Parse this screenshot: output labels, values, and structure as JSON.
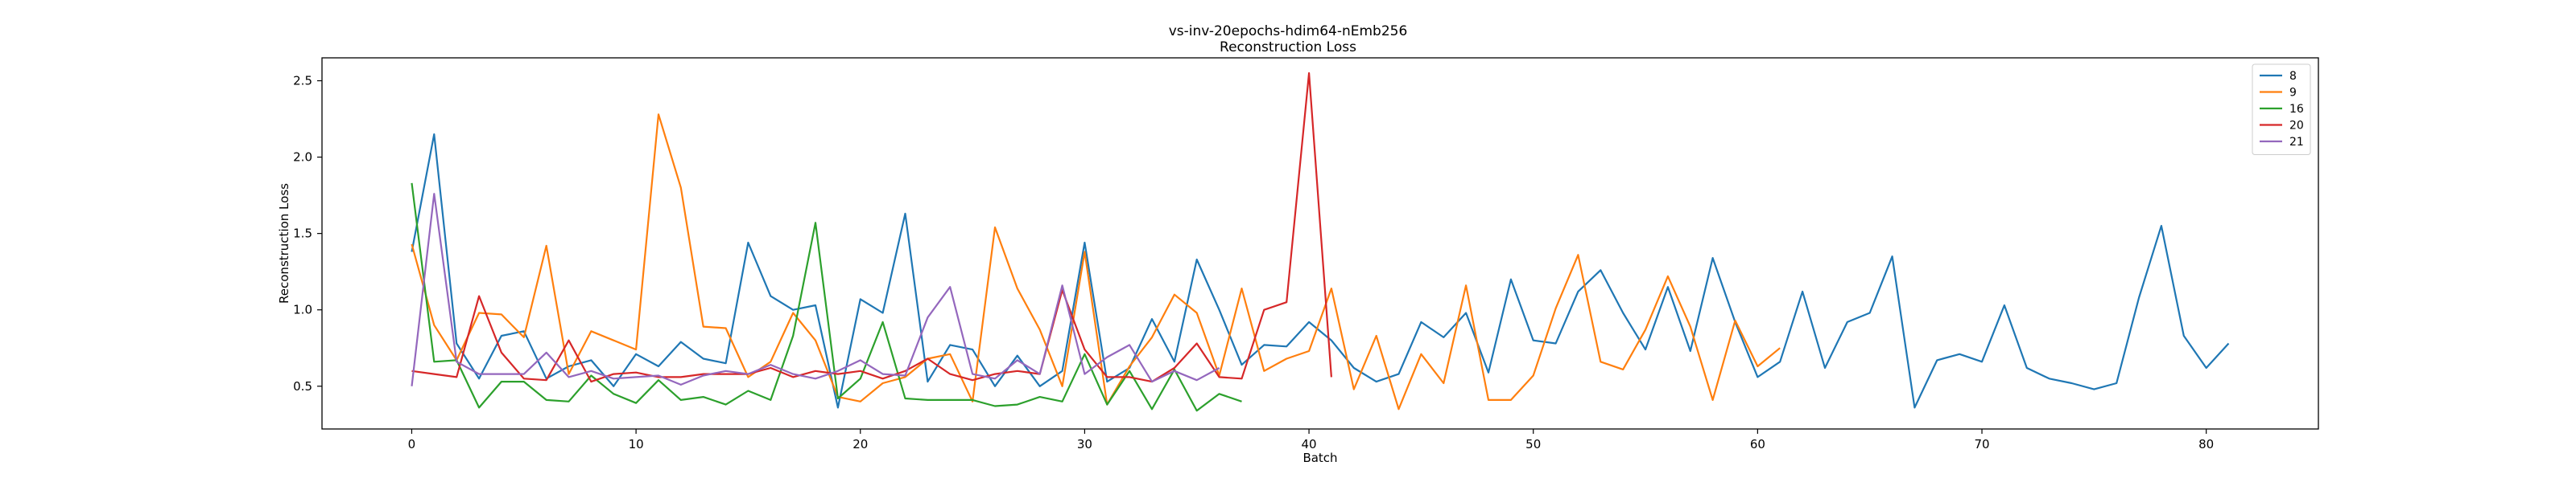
{
  "chart_data": {
    "type": "line",
    "title": "vs-inv-20epochs-hdim64-nEmb256",
    "subtitle": "Reconstruction Loss",
    "xlabel": "Batch",
    "ylabel": "Reconstruction Loss",
    "xlim": [
      -4,
      85
    ],
    "ylim": [
      0.22,
      2.65
    ],
    "xticks": [
      0,
      10,
      20,
      30,
      40,
      50,
      60,
      70,
      80
    ],
    "yticks": [
      0.5,
      1.0,
      1.5,
      2.0,
      2.5
    ],
    "ytick_labels": [
      "0.5",
      "1.0",
      "1.5",
      "2.0",
      "2.5"
    ],
    "grid": false,
    "legend_position": "top-right",
    "series": [
      {
        "name": "8",
        "color": "#1f77b4",
        "values": [
          1.38,
          2.15,
          0.78,
          0.55,
          0.83,
          0.86,
          0.55,
          0.63,
          0.67,
          0.5,
          0.71,
          0.63,
          0.79,
          0.68,
          0.65,
          1.44,
          1.09,
          1.0,
          1.03,
          0.36,
          1.07,
          0.98,
          1.63,
          0.53,
          0.77,
          0.74,
          0.5,
          0.7,
          0.5,
          0.6,
          1.44,
          0.53,
          0.62,
          0.94,
          0.66,
          1.33,
          1.0,
          0.64,
          0.77,
          0.76,
          0.92,
          0.8,
          0.62,
          0.53,
          0.58,
          0.92,
          0.82,
          0.98,
          0.59,
          1.2,
          0.8,
          0.78,
          1.12,
          1.26,
          0.98,
          0.74,
          1.15,
          0.73,
          1.34,
          0.92,
          0.56,
          0.66,
          1.12,
          0.62,
          0.92,
          0.98,
          1.35,
          0.36,
          0.67,
          0.71,
          0.66,
          1.03,
          0.62,
          0.55,
          0.52,
          0.48,
          0.52,
          1.08,
          1.55,
          0.83,
          0.62,
          0.78
        ]
      },
      {
        "name": "9",
        "color": "#ff7f0e",
        "values": [
          1.43,
          0.9,
          0.67,
          0.98,
          0.97,
          0.82,
          1.42,
          0.58,
          0.86,
          0.8,
          0.74,
          2.28,
          1.8,
          0.89,
          0.88,
          0.56,
          0.66,
          0.98,
          0.8,
          0.43,
          0.4,
          0.52,
          0.56,
          0.68,
          0.71,
          0.4,
          1.54,
          1.14,
          0.87,
          0.5,
          1.38,
          0.38,
          0.63,
          0.82,
          1.1,
          0.98,
          0.57,
          1.14,
          0.6,
          0.68,
          0.73,
          1.14,
          0.48,
          0.83,
          0.35,
          0.71,
          0.52,
          1.16,
          0.41,
          0.41,
          0.57,
          1.01,
          1.36,
          0.66,
          0.61,
          0.87,
          1.22,
          0.89,
          0.41,
          0.93,
          0.63,
          0.75
        ]
      },
      {
        "name": "16",
        "color": "#2ca02c",
        "values": [
          1.83,
          0.66,
          0.67,
          0.36,
          0.53,
          0.53,
          0.41,
          0.4,
          0.57,
          0.45,
          0.39,
          0.54,
          0.41,
          0.43,
          0.38,
          0.47,
          0.41,
          0.83,
          1.57,
          0.42,
          0.55,
          0.92,
          0.42,
          0.41,
          0.41,
          0.41,
          0.37,
          0.38,
          0.43,
          0.4,
          0.71,
          0.38,
          0.6,
          0.35,
          0.61,
          0.34,
          0.45,
          0.4
        ]
      },
      {
        "name": "20",
        "color": "#d62728",
        "values": [
          0.6,
          0.58,
          0.56,
          1.09,
          0.72,
          0.55,
          0.54,
          0.8,
          0.53,
          0.58,
          0.59,
          0.56,
          0.56,
          0.58,
          0.58,
          0.58,
          0.62,
          0.56,
          0.6,
          0.58,
          0.6,
          0.55,
          0.6,
          0.68,
          0.58,
          0.54,
          0.58,
          0.6,
          0.58,
          1.13,
          0.74,
          0.56,
          0.56,
          0.53,
          0.62,
          0.78,
          0.56,
          0.55,
          1.0,
          1.05,
          2.55,
          0.56
        ]
      },
      {
        "name": "21",
        "color": "#9467bd",
        "values": [
          0.5,
          1.76,
          0.66,
          0.58,
          0.58,
          0.58,
          0.72,
          0.56,
          0.6,
          0.55,
          0.56,
          0.57,
          0.51,
          0.57,
          0.6,
          0.58,
          0.64,
          0.58,
          0.55,
          0.6,
          0.67,
          0.58,
          0.57,
          0.95,
          1.15,
          0.58,
          0.55,
          0.67,
          0.58,
          1.16,
          0.58,
          0.69,
          0.77,
          0.53,
          0.6,
          0.54,
          0.62
        ]
      }
    ]
  }
}
